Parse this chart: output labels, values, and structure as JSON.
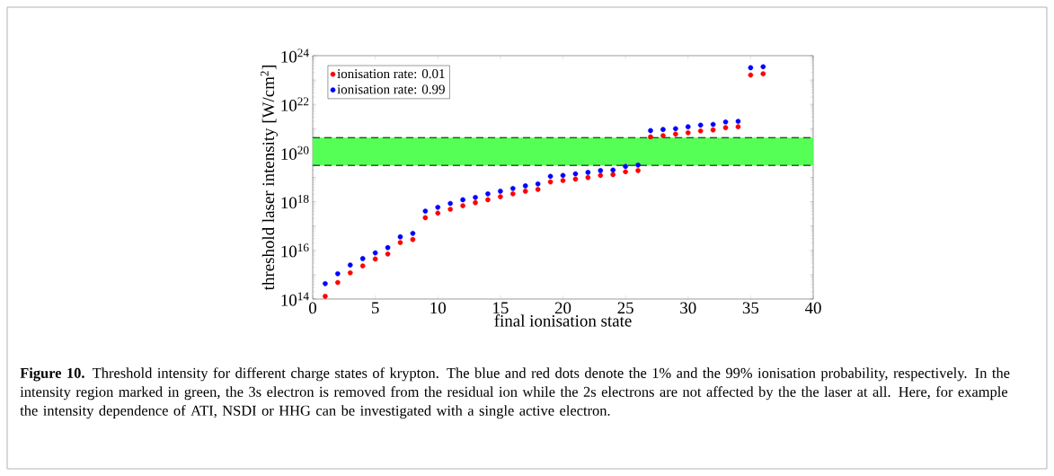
{
  "chart_data": {
    "type": "scatter",
    "xlabel": "final ionisation state",
    "ylabel": "threshold laser intensity [W/cm$^{2}$]",
    "x": [
      1,
      2,
      3,
      4,
      5,
      6,
      7,
      8,
      9,
      10,
      11,
      12,
      13,
      14,
      15,
      16,
      17,
      18,
      19,
      20,
      21,
      22,
      23,
      24,
      25,
      26,
      27,
      28,
      29,
      30,
      31,
      32,
      33,
      34,
      35,
      36
    ],
    "series": [
      {
        "name": "ionisation rate: 0.01",
        "color": "#ff0000",
        "values": [
          130000000000000.0,
          480000000000000.0,
          1200000000000000.0,
          2300000000000000.0,
          4400000000000000.0,
          7100000000000000.0,
          2.1e+16,
          2.8e+16,
          2.2e+17,
          3.4e+17,
          4.9e+17,
          6.8e+17,
          9.1e+17,
          1.2e+18,
          1.6e+18,
          2.1e+18,
          2.7e+18,
          3.2e+18,
          6.5e+18,
          7.4e+18,
          8.5e+18,
          9.8e+18,
          1.2e+19,
          1.3e+19,
          1.7e+19,
          1.9e+19,
          4.6e+20,
          5.2e+20,
          6e+20,
          6.8e+20,
          8.1e+20,
          8.9e+20,
          1.1e+21,
          1.2e+21,
          1.6e+23,
          1.8e+23
        ]
      },
      {
        "name": "ionisation rate: 0.99",
        "color": "#0000ff",
        "values": [
          430000000000000.0,
          1100000000000000.0,
          2500000000000000.0,
          4600000000000000.0,
          7900000000000000.0,
          1.3e+16,
          3.6e+16,
          5e+16,
          4.1e+17,
          5.9e+17,
          8.5e+17,
          1.2e+18,
          1.5e+18,
          2.1e+18,
          2.7e+18,
          3.5e+18,
          4.5e+18,
          5.4e+18,
          1.1e+19,
          1.2e+19,
          1.4e+19,
          1.6e+19,
          1.9e+19,
          2e+19,
          2.8e+19,
          3.2e+19,
          8.3e+20,
          9.3e+20,
          1e+21,
          1.2e+21,
          1.4e+21,
          1.5e+21,
          1.9e+21,
          2e+21,
          3.2e+23,
          3.5e+23
        ]
      }
    ],
    "xlim": [
      0,
      40
    ],
    "xticks": [
      0,
      5,
      10,
      15,
      20,
      25,
      30,
      35,
      40
    ],
    "ylim": [
      100000000000000.0,
      1e+24
    ],
    "yticks": [
      {
        "value": 100000000000000.0,
        "label": "10$^{14}$"
      },
      {
        "value": 1000000000000000.0,
        "label": null
      },
      {
        "value": 1e+16,
        "label": "10$^{16}$"
      },
      {
        "value": 1e+17,
        "label": null
      },
      {
        "value": 1e+18,
        "label": "10$^{18}$"
      },
      {
        "value": 1e+19,
        "label": null
      },
      {
        "value": 1e+20,
        "label": "10$^{20}$"
      },
      {
        "value": 1e+21,
        "label": null
      },
      {
        "value": 1e+22,
        "label": "10$^{22}$"
      },
      {
        "value": 1e+23,
        "label": null
      },
      {
        "value": 1e+24,
        "label": "10$^{24}$"
      }
    ],
    "log": true,
    "marker": "circle",
    "legend": "top left",
    "bands": [
      {
        "axis": "y",
        "from": 3.1e+19,
        "to": 4.3e+20,
        "color": "#55ff55"
      }
    ],
    "ref_lines": [
      {
        "axis": "y",
        "value": 3.1e+19,
        "color": "#000000",
        "line_style": "dashed"
      },
      {
        "axis": "y",
        "value": 4.3e+20,
        "color": "#000000",
        "line_style": "dashed"
      }
    ],
    "annotations": [
      "**Figure 10.** Threshold intensity for different charge states of krypton. The blue and red dots denote the 1% and the 99% ionisation probability, respectively. In the intensity region marked in green, the 3s electron is removed from the residual ion while the 2s electrons are not affected by the the laser at all. Here, for example the intensity dependence of ATI, NSDI or HHG can be investigated with a single active electron."
    ]
  }
}
